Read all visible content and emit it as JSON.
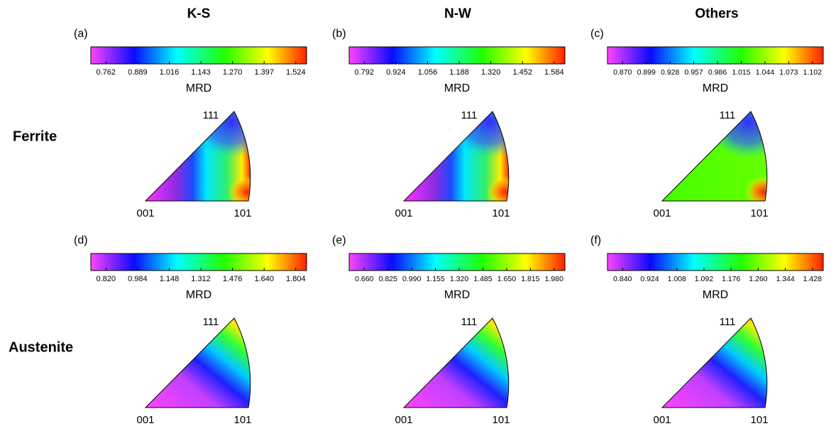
{
  "column_titles": [
    "K-S",
    "N-W",
    "Others"
  ],
  "row_labels": [
    "Ferrite",
    "Austenite"
  ],
  "panels": [
    {
      "label": "(a)",
      "ticks": [
        "0.762",
        "0.889",
        "1.016",
        "1.143",
        "1.270",
        "1.397",
        "1.524"
      ],
      "axis_label": "MRD",
      "corners": [
        "001",
        "101",
        "111"
      ]
    },
    {
      "label": "(b)",
      "ticks": [
        "0.792",
        "0.924",
        "1.056",
        "1.188",
        "1.320",
        "1.452",
        "1.584"
      ],
      "axis_label": "MRD",
      "corners": [
        "001",
        "101",
        "111"
      ]
    },
    {
      "label": "(c)",
      "ticks": [
        "0.870",
        "0.899",
        "0.928",
        "0.957",
        "0.986",
        "1.015",
        "1.044",
        "1.073",
        "1.102"
      ],
      "axis_label": "MRD",
      "corners": [
        "001",
        "101",
        "111"
      ]
    },
    {
      "label": "(d)",
      "ticks": [
        "0.820",
        "0.984",
        "1.148",
        "1.312",
        "1.476",
        "1.640",
        "1.804"
      ],
      "axis_label": "MRD",
      "corners": [
        "001",
        "101",
        "111"
      ]
    },
    {
      "label": "(e)",
      "ticks": [
        "0.660",
        "0.825",
        "0.990",
        "1.155",
        "1.320",
        "1.485",
        "1.650",
        "1.815",
        "1.980"
      ],
      "axis_label": "MRD",
      "corners": [
        "001",
        "101",
        "111"
      ]
    },
    {
      "label": "(f)",
      "ticks": [
        "0.840",
        "0.924",
        "1.008",
        "1.092",
        "1.176",
        "1.260",
        "1.344",
        "1.428"
      ],
      "axis_label": "MRD",
      "corners": [
        "001",
        "101",
        "111"
      ]
    }
  ]
}
